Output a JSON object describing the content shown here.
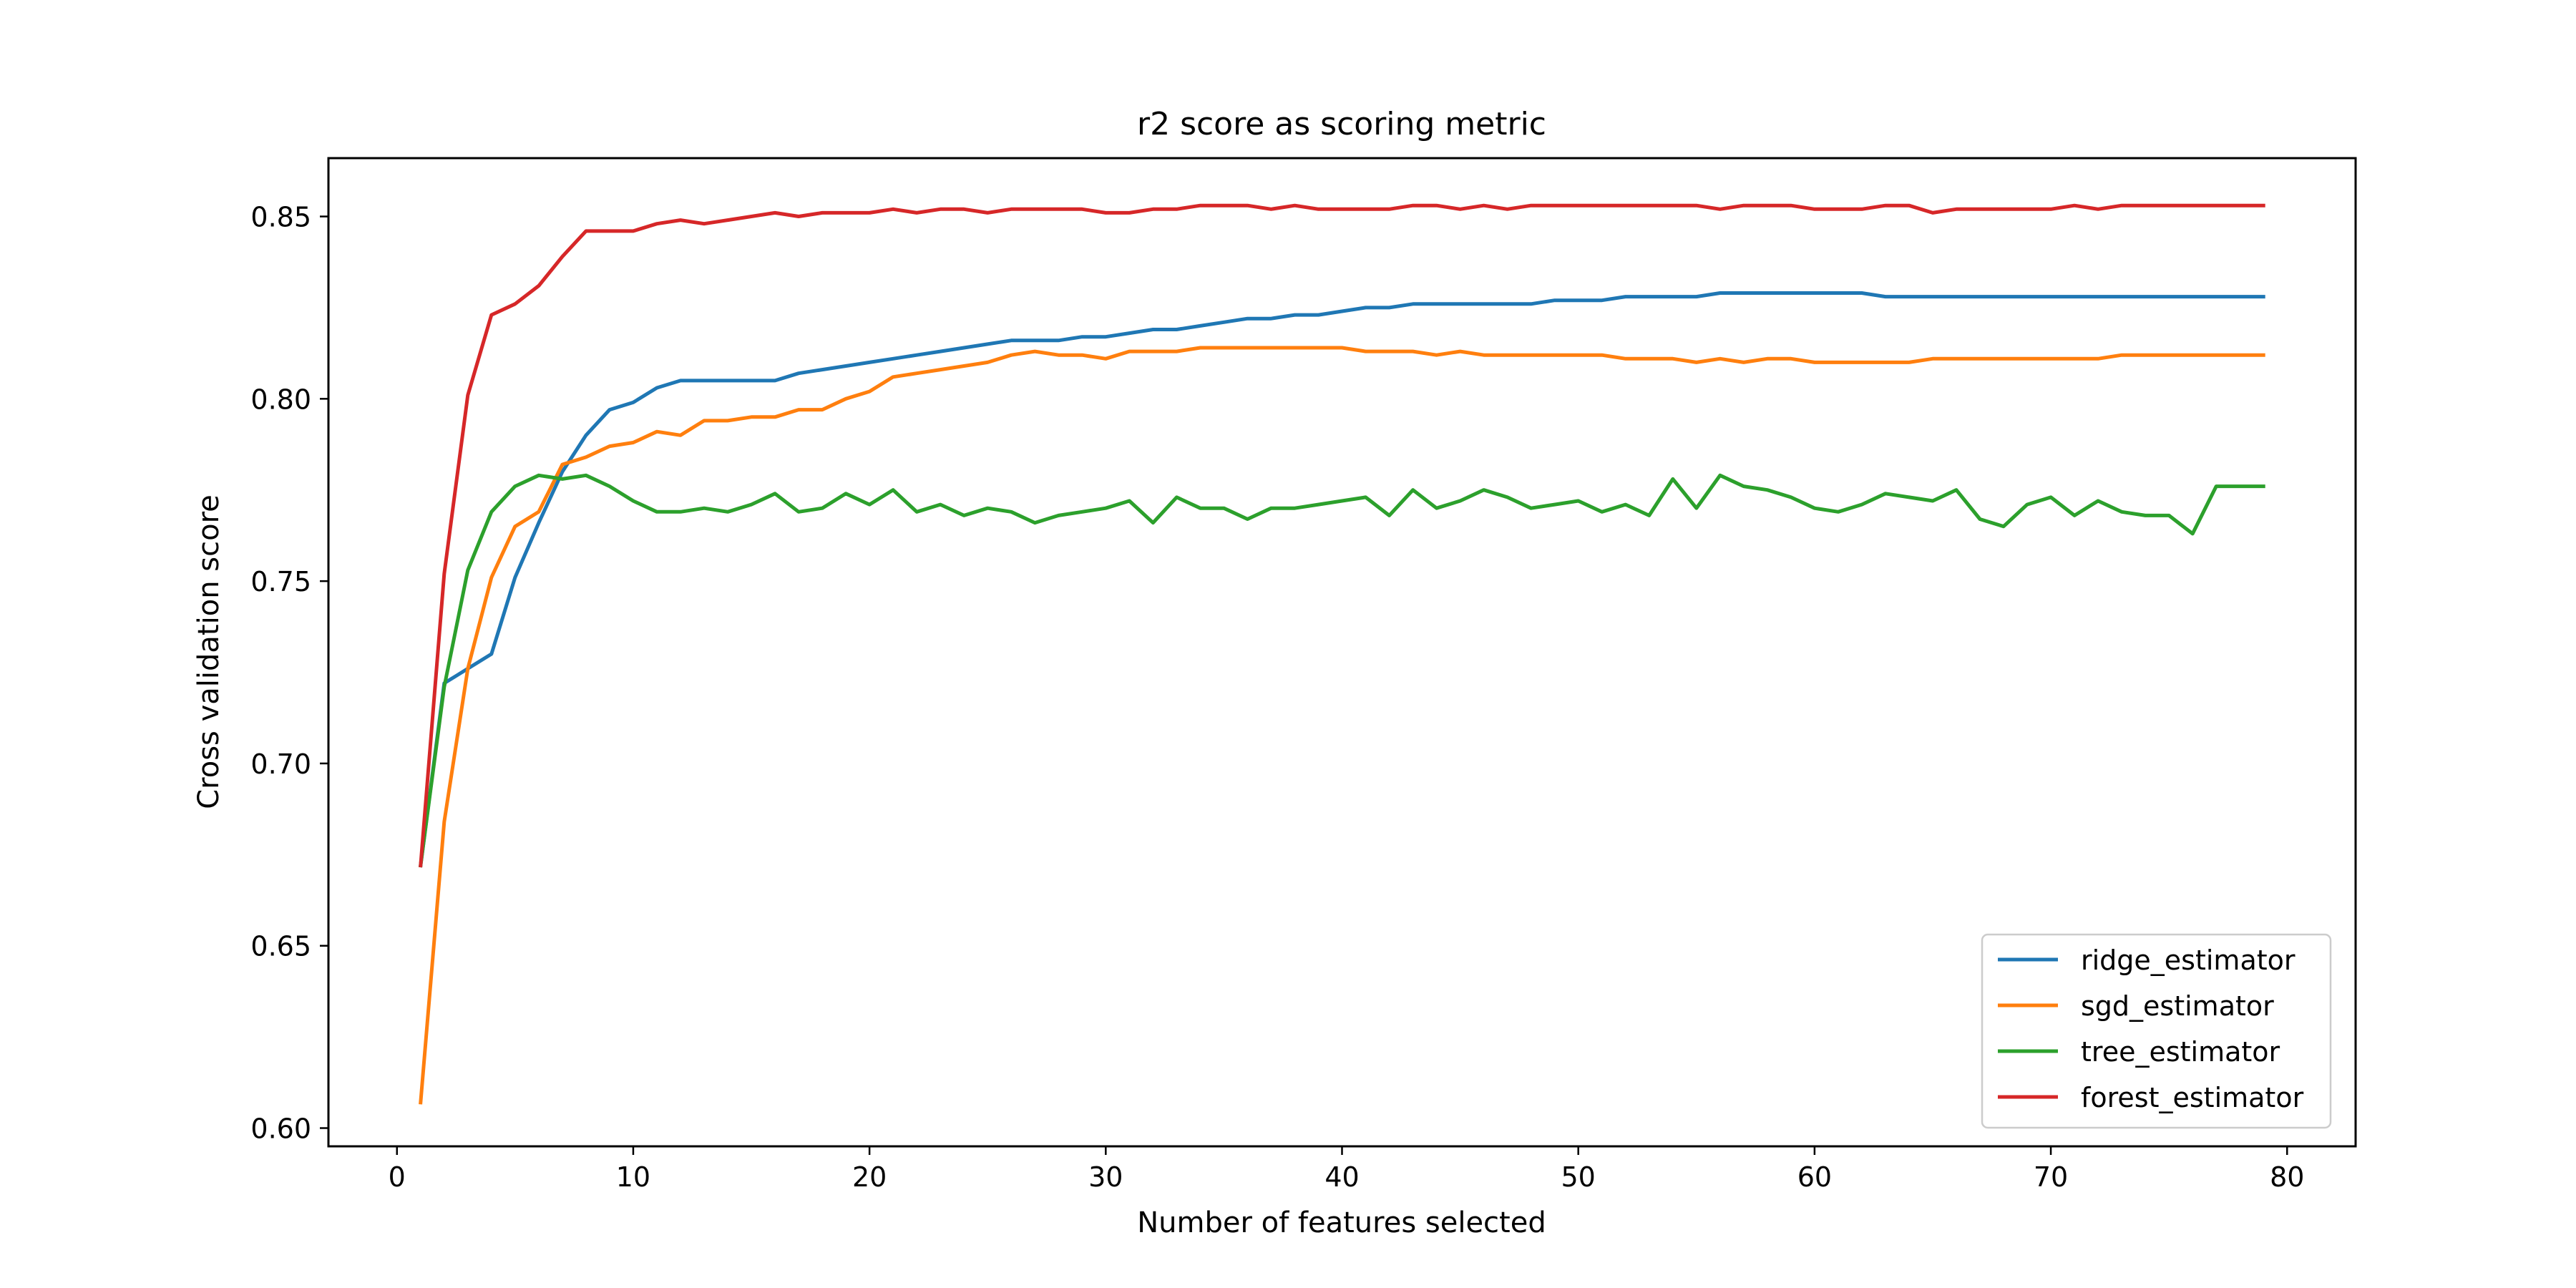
{
  "chart_data": {
    "type": "line",
    "title": "r2 score as scoring metric",
    "xlabel": "Number of features selected",
    "ylabel": "Cross validation score",
    "xlim": [
      -2.9,
      82.9
    ],
    "ylim": [
      0.595,
      0.866
    ],
    "xticks": [
      0,
      10,
      20,
      30,
      40,
      50,
      60,
      70,
      80
    ],
    "xtick_labels": [
      "0",
      "10",
      "20",
      "30",
      "40",
      "50",
      "60",
      "70",
      "80"
    ],
    "yticks": [
      0.6,
      0.65,
      0.7,
      0.75,
      0.8,
      0.85
    ],
    "ytick_labels": [
      "0.60",
      "0.65",
      "0.70",
      "0.75",
      "0.80",
      "0.85"
    ],
    "grid": false,
    "legend_position": "lower-right",
    "x": [
      1,
      2,
      3,
      4,
      5,
      6,
      7,
      8,
      9,
      10,
      11,
      12,
      13,
      14,
      15,
      16,
      17,
      18,
      19,
      20,
      21,
      22,
      23,
      24,
      25,
      26,
      27,
      28,
      29,
      30,
      31,
      32,
      33,
      34,
      35,
      36,
      37,
      38,
      39,
      40,
      41,
      42,
      43,
      44,
      45,
      46,
      47,
      48,
      49,
      50,
      51,
      52,
      53,
      54,
      55,
      56,
      57,
      58,
      59,
      60,
      61,
      62,
      63,
      64,
      65,
      66,
      67,
      68,
      69,
      70,
      71,
      72,
      73,
      74,
      75,
      76,
      77,
      78,
      79
    ],
    "series": [
      {
        "name": "ridge_estimator",
        "color": "#1f77b4",
        "values": [
          0.672,
          0.722,
          0.726,
          0.73,
          0.751,
          0.766,
          0.78,
          0.79,
          0.797,
          0.799,
          0.803,
          0.805,
          0.805,
          0.805,
          0.805,
          0.805,
          0.807,
          0.808,
          0.809,
          0.81,
          0.811,
          0.812,
          0.813,
          0.814,
          0.815,
          0.816,
          0.816,
          0.816,
          0.817,
          0.817,
          0.818,
          0.819,
          0.819,
          0.82,
          0.821,
          0.822,
          0.822,
          0.823,
          0.823,
          0.824,
          0.825,
          0.825,
          0.826,
          0.826,
          0.826,
          0.826,
          0.826,
          0.826,
          0.827,
          0.827,
          0.827,
          0.828,
          0.828,
          0.828,
          0.828,
          0.829,
          0.829,
          0.829,
          0.829,
          0.829,
          0.829,
          0.829,
          0.828,
          0.828,
          0.828,
          0.828,
          0.828,
          0.828,
          0.828,
          0.828,
          0.828,
          0.828,
          0.828,
          0.828,
          0.828,
          0.828,
          0.828,
          0.828,
          0.828
        ]
      },
      {
        "name": "sgd_estimator",
        "color": "#ff7f0e",
        "values": [
          0.607,
          0.684,
          0.726,
          0.751,
          0.765,
          0.769,
          0.782,
          0.784,
          0.787,
          0.788,
          0.791,
          0.79,
          0.794,
          0.794,
          0.795,
          0.795,
          0.797,
          0.797,
          0.8,
          0.802,
          0.806,
          0.807,
          0.808,
          0.809,
          0.81,
          0.812,
          0.813,
          0.812,
          0.812,
          0.811,
          0.813,
          0.813,
          0.813,
          0.814,
          0.814,
          0.814,
          0.814,
          0.814,
          0.814,
          0.814,
          0.813,
          0.813,
          0.813,
          0.812,
          0.813,
          0.812,
          0.812,
          0.812,
          0.812,
          0.812,
          0.812,
          0.811,
          0.811,
          0.811,
          0.81,
          0.811,
          0.81,
          0.811,
          0.811,
          0.81,
          0.81,
          0.81,
          0.81,
          0.81,
          0.811,
          0.811,
          0.811,
          0.811,
          0.811,
          0.811,
          0.811,
          0.811,
          0.812,
          0.812,
          0.812,
          0.812,
          0.812,
          0.812,
          0.812
        ]
      },
      {
        "name": "tree_estimator",
        "color": "#2ca02c",
        "values": [
          0.672,
          0.721,
          0.753,
          0.769,
          0.776,
          0.779,
          0.778,
          0.779,
          0.776,
          0.772,
          0.769,
          0.769,
          0.77,
          0.769,
          0.771,
          0.774,
          0.769,
          0.77,
          0.774,
          0.771,
          0.775,
          0.769,
          0.771,
          0.768,
          0.77,
          0.769,
          0.766,
          0.768,
          0.769,
          0.77,
          0.772,
          0.766,
          0.773,
          0.77,
          0.77,
          0.767,
          0.77,
          0.77,
          0.771,
          0.772,
          0.773,
          0.768,
          0.775,
          0.77,
          0.772,
          0.775,
          0.773,
          0.77,
          0.771,
          0.772,
          0.769,
          0.771,
          0.768,
          0.778,
          0.77,
          0.779,
          0.776,
          0.775,
          0.773,
          0.77,
          0.769,
          0.771,
          0.774,
          0.773,
          0.772,
          0.775,
          0.767,
          0.765,
          0.771,
          0.773,
          0.768,
          0.772,
          0.769,
          0.768,
          0.768,
          0.763,
          0.776,
          0.776,
          0.776
        ]
      },
      {
        "name": "forest_estimator",
        "color": "#d62728",
        "values": [
          0.672,
          0.752,
          0.801,
          0.823,
          0.826,
          0.831,
          0.839,
          0.846,
          0.846,
          0.846,
          0.848,
          0.849,
          0.848,
          0.849,
          0.85,
          0.851,
          0.85,
          0.851,
          0.851,
          0.851,
          0.852,
          0.851,
          0.852,
          0.852,
          0.851,
          0.852,
          0.852,
          0.852,
          0.852,
          0.851,
          0.851,
          0.852,
          0.852,
          0.853,
          0.853,
          0.853,
          0.852,
          0.853,
          0.852,
          0.852,
          0.852,
          0.852,
          0.853,
          0.853,
          0.852,
          0.853,
          0.852,
          0.853,
          0.853,
          0.853,
          0.853,
          0.853,
          0.853,
          0.853,
          0.853,
          0.852,
          0.853,
          0.853,
          0.853,
          0.852,
          0.852,
          0.852,
          0.853,
          0.853,
          0.851,
          0.852,
          0.852,
          0.852,
          0.852,
          0.852,
          0.853,
          0.852,
          0.853,
          0.853,
          0.853,
          0.853,
          0.853,
          0.853,
          0.853
        ]
      }
    ]
  }
}
